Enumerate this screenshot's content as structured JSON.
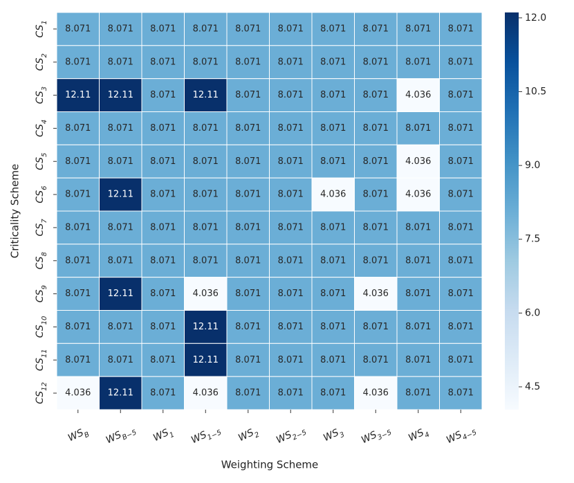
{
  "chart_data": {
    "type": "heatmap",
    "xlabel": "Weighting Scheme",
    "ylabel": "Criticality Scheme",
    "x_categories": [
      {
        "base": "WS",
        "sub": "B"
      },
      {
        "base": "WS",
        "sub": "B−5"
      },
      {
        "base": "WS",
        "sub": "1"
      },
      {
        "base": "WS",
        "sub": "1−5"
      },
      {
        "base": "WS",
        "sub": "2"
      },
      {
        "base": "WS",
        "sub": "2−5"
      },
      {
        "base": "WS",
        "sub": "3"
      },
      {
        "base": "WS",
        "sub": "3−5"
      },
      {
        "base": "WS",
        "sub": "4"
      },
      {
        "base": "WS",
        "sub": "4−5"
      }
    ],
    "y_categories": [
      {
        "base": "CS",
        "sub": "1"
      },
      {
        "base": "CS",
        "sub": "2"
      },
      {
        "base": "CS",
        "sub": "3"
      },
      {
        "base": "CS",
        "sub": "4"
      },
      {
        "base": "CS",
        "sub": "5"
      },
      {
        "base": "CS",
        "sub": "6"
      },
      {
        "base": "CS",
        "sub": "7"
      },
      {
        "base": "CS",
        "sub": "8"
      },
      {
        "base": "CS",
        "sub": "9"
      },
      {
        "base": "CS",
        "sub": "10"
      },
      {
        "base": "CS",
        "sub": "11"
      },
      {
        "base": "CS",
        "sub": "12"
      }
    ],
    "z": [
      [
        8.071,
        8.071,
        8.071,
        8.071,
        8.071,
        8.071,
        8.071,
        8.071,
        8.071,
        8.071
      ],
      [
        8.071,
        8.071,
        8.071,
        8.071,
        8.071,
        8.071,
        8.071,
        8.071,
        8.071,
        8.071
      ],
      [
        12.11,
        12.11,
        8.071,
        12.11,
        8.071,
        8.071,
        8.071,
        8.071,
        4.036,
        8.071
      ],
      [
        8.071,
        8.071,
        8.071,
        8.071,
        8.071,
        8.071,
        8.071,
        8.071,
        8.071,
        8.071
      ],
      [
        8.071,
        8.071,
        8.071,
        8.071,
        8.071,
        8.071,
        8.071,
        8.071,
        4.036,
        8.071
      ],
      [
        8.071,
        12.11,
        8.071,
        8.071,
        8.071,
        8.071,
        4.036,
        8.071,
        4.036,
        8.071
      ],
      [
        8.071,
        8.071,
        8.071,
        8.071,
        8.071,
        8.071,
        8.071,
        8.071,
        8.071,
        8.071
      ],
      [
        8.071,
        8.071,
        8.071,
        8.071,
        8.071,
        8.071,
        8.071,
        8.071,
        8.071,
        8.071
      ],
      [
        8.071,
        12.11,
        8.071,
        4.036,
        8.071,
        8.071,
        8.071,
        4.036,
        8.071,
        8.071
      ],
      [
        8.071,
        8.071,
        8.071,
        12.11,
        8.071,
        8.071,
        8.071,
        8.071,
        8.071,
        8.071
      ],
      [
        8.071,
        8.071,
        8.071,
        12.11,
        8.071,
        8.071,
        8.071,
        8.071,
        8.071,
        8.071
      ],
      [
        4.036,
        12.11,
        8.071,
        4.036,
        8.071,
        8.071,
        8.071,
        4.036,
        8.071,
        8.071
      ]
    ],
    "colormap": [
      "#f7fbff",
      "#deebf7",
      "#c6dbef",
      "#9ecae1",
      "#6baed6",
      "#4292c6",
      "#2171b5",
      "#08519c",
      "#08306b"
    ],
    "clim": [
      4.036,
      12.11
    ],
    "cticks": [
      {
        "value": 12,
        "label": "12.0"
      },
      10.5,
      {
        "value": 9,
        "label": "9.0"
      },
      7.5,
      {
        "value": 6,
        "label": "6.0"
      },
      4.5
    ]
  }
}
